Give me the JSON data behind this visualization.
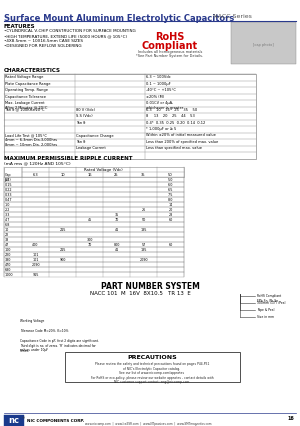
{
  "title": "Surface Mount Aluminum Electrolytic Capacitors",
  "series": "NACC Series",
  "bg_color": "#ffffff",
  "title_color": "#2a3a8c",
  "features_title": "FEATURES",
  "features": [
    "•CYLINDRICAL V-CHIP CONSTRUCTION FOR SURFACE MOUNTING",
    "•HIGH TEMPERATURE, EXTEND LIFE (5000 HOURS @ 105°C)",
    "•4X8.5mm ~ 10X16.5mm CASE SIZES",
    "•DESIGNED FOR REFLOW SOLDERING"
  ],
  "rohs_line1": "RoHS",
  "rohs_line2": "Compliant",
  "rohs_sub1": "Includes all homogeneous materials",
  "rohs_sub2": "*See Part Number System for Details.",
  "char_title": "CHARACTERISTICS",
  "ripple_title": "MAXIMUM PERMISSIBLE RIPPLE CURRENT",
  "ripple_sub": "(mA rms @ 120Hz AND 105°C)",
  "part_title": "PART NUMBER SYSTEM",
  "part_example": "NACC 101 M 16V 8X10.5 TR 13 E",
  "precaution_title": "PRECAUTIONS",
  "footer_company": "NIC COMPONENTS CORP.",
  "footer_urls": "www.niccomp.com  |  www.IceESR.com  |  www.NTpassives.com  |  www.SMTmagnetics.com",
  "page_num": "16"
}
